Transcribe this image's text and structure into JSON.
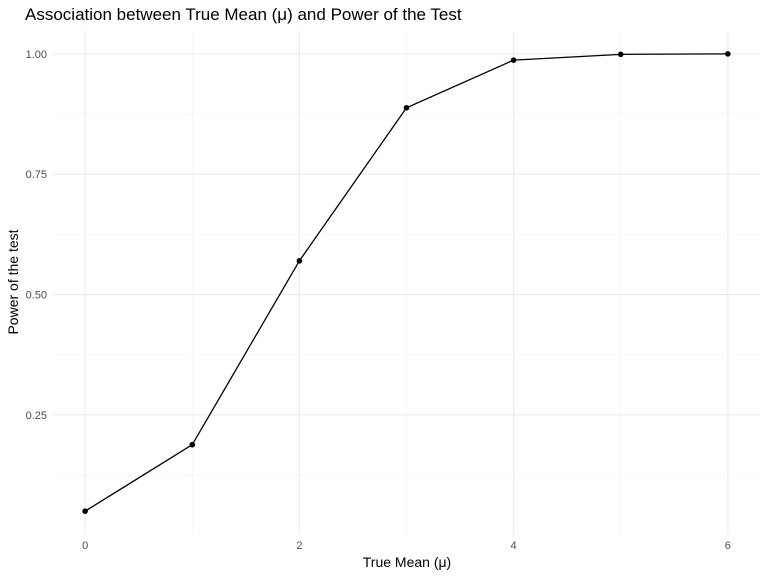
{
  "chart_data": {
    "type": "line",
    "title": "Association between True Mean (μ) and Power of the Test",
    "xlabel": "True Mean (μ)",
    "ylabel": "Power of the test",
    "x": [
      0,
      1,
      2,
      3,
      4,
      5,
      6
    ],
    "series": [
      {
        "values": [
          0.05,
          0.188,
          0.57,
          0.888,
          0.987,
          0.999,
          1.0
        ]
      }
    ],
    "xlim": [
      -0.3,
      6.3
    ],
    "ylim": [
      0.0025,
      1.0475
    ],
    "x_ticks": [
      0,
      2,
      4,
      6
    ],
    "x_tick_labels": [
      "0",
      "2",
      "4",
      "6"
    ],
    "y_ticks": [
      0.25,
      0.5,
      0.75,
      1.0
    ],
    "y_tick_labels": [
      "0.25",
      "0.50",
      "0.75",
      "1.00"
    ],
    "x_minor_ticks": [
      1,
      3,
      5
    ],
    "y_minor_ticks": [
      0.125,
      0.375,
      0.625,
      0.875
    ],
    "grid": true,
    "markers": true,
    "line_color": "#000000",
    "grid_color": "#ebebeb",
    "background_color": "#ffffff"
  }
}
